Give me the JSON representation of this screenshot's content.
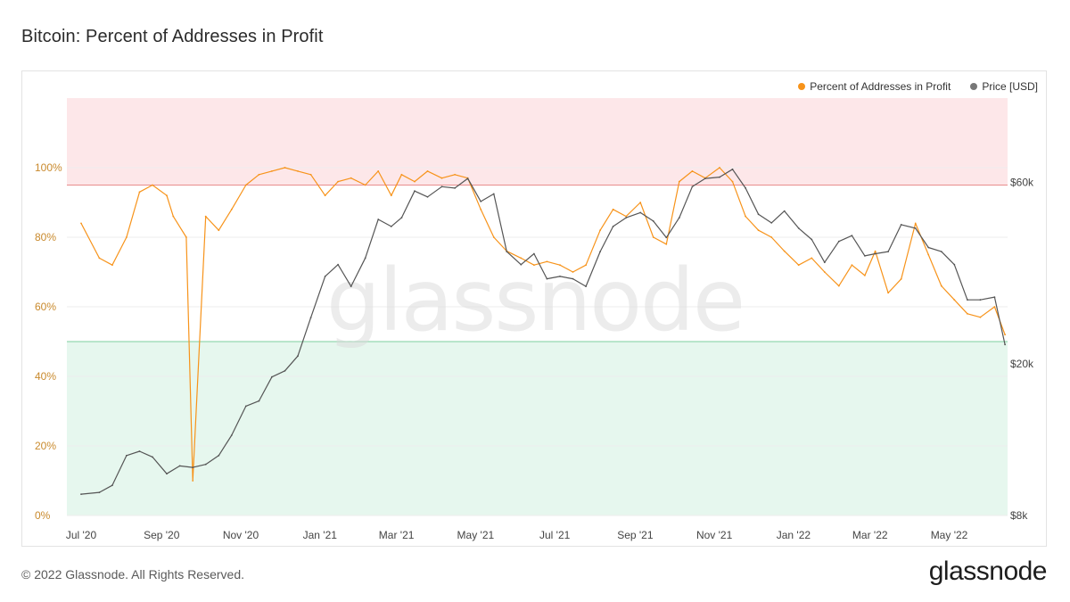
{
  "title": "Bitcoin: Percent of Addresses in Profit",
  "footer": "© 2022 Glassnode. All Rights Reserved.",
  "brand": "glassnode",
  "watermark": "glassnode",
  "colors": {
    "profit": "#f7931a",
    "price": "#555555",
    "upper_zone": "#fde7e9",
    "lower_zone": "#e6f7ee",
    "upper_line": "#e88c8c",
    "lower_line": "#7fcf9f"
  },
  "legend": [
    {
      "label": "Percent of Addresses in Profit",
      "color": "#f7931a"
    },
    {
      "label": "Price [USD]",
      "color": "#777777"
    }
  ],
  "chart_data": {
    "type": "line",
    "legend_position": "top-right",
    "grid": true,
    "x_ticks": [
      "Jul '20",
      "Sep '20",
      "Nov '20",
      "Jan '21",
      "Mar '21",
      "May '21",
      "Jul '21",
      "Sep '21",
      "Nov '21",
      "Jan '22",
      "Mar '22",
      "May '22"
    ],
    "left_axis": {
      "ticks": [
        "0%",
        "20%",
        "40%",
        "60%",
        "80%",
        "100%"
      ],
      "values": [
        0,
        20,
        40,
        60,
        80,
        100
      ],
      "range": [
        0,
        120
      ]
    },
    "right_axis": {
      "ticks": [
        "$8k",
        "$20k",
        "$60k"
      ],
      "values": [
        8000,
        20000,
        60000
      ],
      "scale": "log",
      "range": [
        8000,
        100000
      ]
    },
    "bands": [
      {
        "from": 95,
        "to": 120,
        "color": "#fde7e9",
        "line_value": 95
      },
      {
        "from": 0,
        "to": 50,
        "color": "#e6f7ee",
        "line_value": 50
      }
    ],
    "series": [
      {
        "name": "Percent of Addresses in Profit",
        "axis": "left",
        "color": "#f7931a",
        "x": [
          "2020-07-01",
          "2020-07-15",
          "2020-07-25",
          "2020-08-05",
          "2020-08-15",
          "2020-08-25",
          "2020-09-05",
          "2020-09-10",
          "2020-09-20",
          "2020-09-25",
          "2020-10-05",
          "2020-10-15",
          "2020-10-25",
          "2020-11-05",
          "2020-11-15",
          "2020-11-25",
          "2020-12-05",
          "2020-12-15",
          "2020-12-25",
          "2021-01-05",
          "2021-01-15",
          "2021-01-25",
          "2021-02-05",
          "2021-02-15",
          "2021-02-25",
          "2021-03-05",
          "2021-03-15",
          "2021-03-25",
          "2021-04-05",
          "2021-04-15",
          "2021-04-25",
          "2021-05-05",
          "2021-05-15",
          "2021-05-25",
          "2021-06-05",
          "2021-06-15",
          "2021-06-25",
          "2021-07-05",
          "2021-07-15",
          "2021-07-25",
          "2021-08-05",
          "2021-08-15",
          "2021-08-25",
          "2021-09-05",
          "2021-09-15",
          "2021-09-25",
          "2021-10-05",
          "2021-10-15",
          "2021-10-25",
          "2021-11-05",
          "2021-11-15",
          "2021-11-25",
          "2021-12-05",
          "2021-12-15",
          "2021-12-25",
          "2022-01-05",
          "2022-01-15",
          "2022-01-25",
          "2022-02-05",
          "2022-02-15",
          "2022-02-25",
          "2022-03-05",
          "2022-03-15",
          "2022-03-25",
          "2022-04-05",
          "2022-04-15",
          "2022-04-25",
          "2022-05-05",
          "2022-05-15",
          "2022-05-25",
          "2022-06-05",
          "2022-06-13"
        ],
        "values": [
          84,
          74,
          72,
          80,
          93,
          95,
          92,
          86,
          80,
          10,
          86,
          82,
          88,
          95,
          98,
          99,
          100,
          99,
          98,
          92,
          96,
          97,
          95,
          99,
          92,
          98,
          96,
          99,
          97,
          98,
          97,
          88,
          80,
          76,
          74,
          72,
          73,
          72,
          70,
          72,
          82,
          88,
          86,
          90,
          80,
          78,
          96,
          99,
          97,
          100,
          96,
          86,
          82,
          80,
          76,
          72,
          74,
          70,
          66,
          72,
          69,
          76,
          64,
          68,
          84,
          75,
          66,
          62,
          58,
          57,
          60,
          52
        ]
      },
      {
        "name": "Price [USD]",
        "axis": "right",
        "color": "#555555",
        "x": [
          "2020-07-01",
          "2020-07-15",
          "2020-07-25",
          "2020-08-05",
          "2020-08-15",
          "2020-08-25",
          "2020-09-05",
          "2020-09-15",
          "2020-09-25",
          "2020-10-05",
          "2020-10-15",
          "2020-10-25",
          "2020-11-05",
          "2020-11-15",
          "2020-11-25",
          "2020-12-05",
          "2020-12-15",
          "2020-12-25",
          "2021-01-05",
          "2021-01-15",
          "2021-01-25",
          "2021-02-05",
          "2021-02-15",
          "2021-02-25",
          "2021-03-05",
          "2021-03-15",
          "2021-03-25",
          "2021-04-05",
          "2021-04-15",
          "2021-04-25",
          "2021-05-05",
          "2021-05-15",
          "2021-05-25",
          "2021-06-05",
          "2021-06-15",
          "2021-06-25",
          "2021-07-05",
          "2021-07-15",
          "2021-07-25",
          "2021-08-05",
          "2021-08-15",
          "2021-08-25",
          "2021-09-05",
          "2021-09-15",
          "2021-09-25",
          "2021-10-05",
          "2021-10-15",
          "2021-10-25",
          "2021-11-05",
          "2021-11-15",
          "2021-11-25",
          "2021-12-05",
          "2021-12-15",
          "2021-12-25",
          "2022-01-05",
          "2022-01-15",
          "2022-01-25",
          "2022-02-05",
          "2022-02-15",
          "2022-02-25",
          "2022-03-05",
          "2022-03-15",
          "2022-03-25",
          "2022-04-05",
          "2022-04-15",
          "2022-04-25",
          "2022-05-05",
          "2022-05-15",
          "2022-05-25",
          "2022-06-05",
          "2022-06-13"
        ],
        "values": [
          9100,
          9200,
          9600,
          11500,
          11800,
          11400,
          10300,
          10800,
          10700,
          10900,
          11500,
          13000,
          15500,
          16000,
          18500,
          19200,
          21000,
          26500,
          34000,
          36500,
          32000,
          38000,
          48000,
          46000,
          48500,
          57000,
          55000,
          58500,
          58000,
          61500,
          53500,
          56000,
          39500,
          36500,
          39000,
          33500,
          34000,
          33500,
          32000,
          39500,
          46000,
          48500,
          50000,
          47500,
          43000,
          48500,
          58500,
          61500,
          62000,
          65000,
          58000,
          49500,
          47000,
          50500,
          45500,
          42500,
          37000,
          42000,
          43500,
          38500,
          39000,
          39500,
          46500,
          45500,
          40500,
          39500,
          36500,
          29500,
          29500,
          30000,
          22500
        ]
      }
    ]
  }
}
